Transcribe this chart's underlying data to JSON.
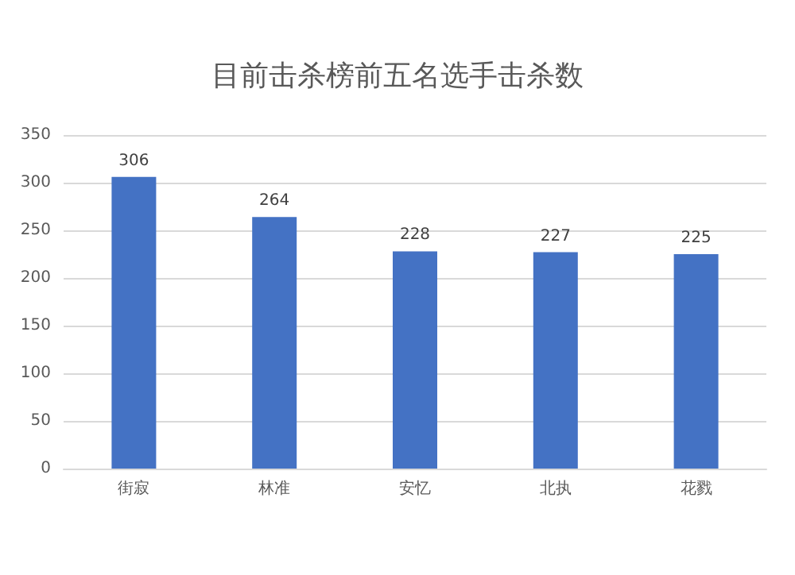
{
  "chart_data": {
    "type": "bar",
    "title": "目前击杀榜前五名选手击杀数",
    "categories": [
      "街寂",
      "林准",
      "安忆",
      "北执",
      "花戮"
    ],
    "values": [
      306,
      264,
      228,
      227,
      225
    ],
    "color": "#4472c4",
    "ylim": [
      0,
      350
    ],
    "yticks": [
      0,
      50,
      100,
      150,
      200,
      250,
      300,
      350
    ],
    "grid": "y",
    "data_labels": true
  }
}
